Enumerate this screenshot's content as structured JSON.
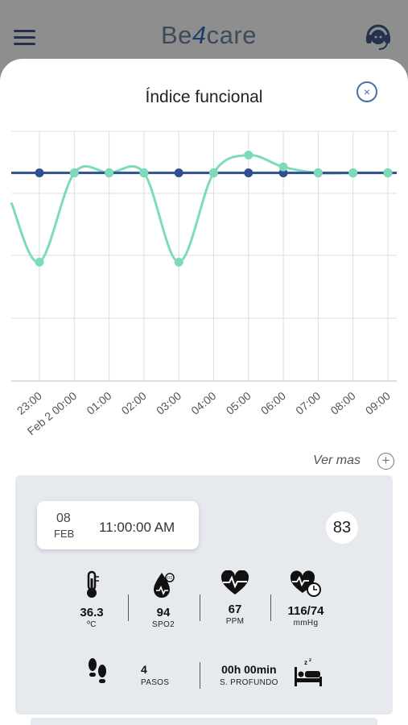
{
  "app": {
    "brand_pre": "Be",
    "brand_mid": "4",
    "brand_post": "care",
    "icons": [
      "hamburger-menu-icon",
      "support-agent-icon"
    ]
  },
  "modal": {
    "title": "Índice funcional",
    "close_icon": "close-circle-icon",
    "more_label": "Ver mas",
    "more_icon": "plus-circle-icon"
  },
  "chart_data": {
    "type": "line",
    "categories": [
      "23:00",
      "Feb  2 00:00",
      "01:00",
      "02:00",
      "03:00",
      "04:00",
      "05:00",
      "06:00",
      "07:00",
      "08:00",
      "09:00"
    ],
    "series": [
      {
        "color": "#2f4f8f",
        "values": [
          100,
          100,
          100,
          100,
          100,
          100,
          100,
          100,
          100,
          100,
          100
        ]
      },
      {
        "color": "#7ddbb8",
        "values": [
          85,
          100,
          100,
          100,
          85,
          100,
          103,
          101,
          100,
          100,
          100
        ]
      }
    ],
    "ylim": [
      65,
      107
    ],
    "grid": true,
    "colors": {
      "primary": "#2f4f8f",
      "secondary": "#7ddbb8"
    }
  },
  "record": {
    "day": "08",
    "month": "FEB",
    "time": "11:00:00 AM",
    "score": "83",
    "metrics": [
      {
        "icon": "thermometer-icon",
        "value": "36.3",
        "unit": "ºC"
      },
      {
        "icon": "blood-oxygen-drop-icon",
        "value": "94",
        "unit": "SPO2"
      },
      {
        "icon": "heart-rate-icon",
        "value": "67",
        "unit": "PPM"
      },
      {
        "icon": "blood-pressure-heart-icon",
        "value": "116/74",
        "unit": "mmHg"
      }
    ],
    "steps": {
      "icon": "footsteps-icon",
      "value": "4",
      "unit": "PASOS"
    },
    "sleep": {
      "icon": "sleep-bed-icon",
      "value": "00h 00min",
      "unit": "S. PROFUNDO"
    }
  }
}
